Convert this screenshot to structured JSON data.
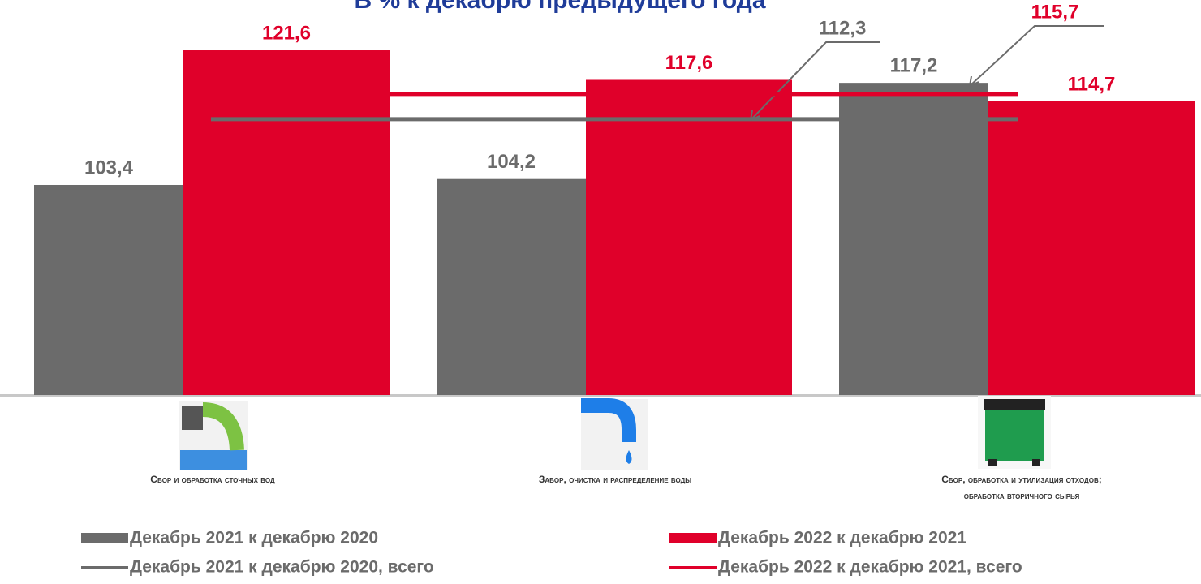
{
  "chart_data": {
    "type": "bar",
    "title": "В % к декабрю предыдущего года",
    "categories": [
      "Сбор и обработка сточных вод",
      "Забор, очистка и распределение воды",
      [
        "Сбор, обработка и утилизация отходов;",
        "обработка вторичного сырья"
      ]
    ],
    "series": [
      {
        "name": "Декабрь 2021 к декабрю 2020",
        "color": "#6b6b6b",
        "values": [
          103.4,
          104.2,
          117.2
        ],
        "value_labels": [
          "103,4",
          "104,2",
          "117,2"
        ]
      },
      {
        "name": "Декабрь 2022 к декабрю 2021",
        "color": "#e0002a",
        "values": [
          121.6,
          117.6,
          114.7
        ],
        "value_labels": [
          "121,6",
          "117,6",
          "114,7"
        ]
      }
    ],
    "lines": [
      {
        "name": "Декабрь 2021 к декабрю 2020, всего",
        "color": "#6b6b6b",
        "value": 112.3,
        "value_label": "112,3"
      },
      {
        "name": "Декабрь 2022 к декабрю 2021, всего",
        "color": "#e0002a",
        "value": 115.7,
        "value_label": "115,7"
      }
    ],
    "ylim": [
      75,
      125
    ]
  }
}
